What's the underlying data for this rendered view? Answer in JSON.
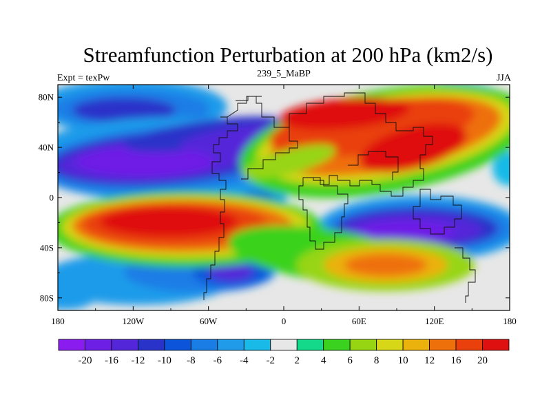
{
  "title": "Streamfunction Perturbation at 200 hPa (km2/s)",
  "subtitle_left": "Expt = texPw",
  "subtitle_center": "239_5_MaBP",
  "subtitle_right": "JJA",
  "x_ticks": [
    "180",
    "120W",
    "60W",
    "0",
    "60E",
    "120E",
    "180"
  ],
  "y_ticks": [
    "80N",
    "40N",
    "0",
    "40S",
    "80S"
  ],
  "colorbar": {
    "labels": [
      "-20",
      "-16",
      "-12",
      "-10",
      "-8",
      "-6",
      "-4",
      "-2",
      "2",
      "4",
      "6",
      "8",
      "10",
      "12",
      "16",
      "20"
    ],
    "colors": [
      "#8a1cf0",
      "#6e1fe6",
      "#5426d9",
      "#2a33c9",
      "#0c55da",
      "#1a7de6",
      "#1f9bea",
      "#19bae8",
      "#e7e7e7",
      "#15d98a",
      "#3ad21e",
      "#97d513",
      "#d7d617",
      "#ebb10c",
      "#ee700b",
      "#e9400c",
      "#df1010"
    ]
  },
  "chart_data": {
    "type": "heatmap",
    "title": "Streamfunction Perturbation at 200 hPa (km2/s)",
    "levels": [
      -20,
      -16,
      -12,
      -10,
      -8,
      -6,
      -4,
      -2,
      2,
      4,
      6,
      8,
      10,
      12,
      16,
      20
    ],
    "xlim": [
      -180,
      180
    ],
    "ylim": [
      -90,
      90
    ],
    "features": [
      {
        "region": "North Pacific / North America mid-latitudes",
        "lon": -110,
        "lat": 30,
        "value": -20
      },
      {
        "region": "Europe / Asia mid-latitudes",
        "lon": 60,
        "lat": 50,
        "value": 20
      },
      {
        "region": "Tropical / subtropical South Pacific",
        "lon": -100,
        "lat": -20,
        "value": 20
      },
      {
        "region": "Indian Ocean / Australia tropics",
        "lon": 100,
        "lat": -25,
        "value": -20
      },
      {
        "region": "Southern Ocean south of Africa-India",
        "lon": 75,
        "lat": -55,
        "value": 14
      },
      {
        "region": "South Atlantic high latitudes",
        "lon": -45,
        "lat": -60,
        "value": -12
      }
    ]
  }
}
